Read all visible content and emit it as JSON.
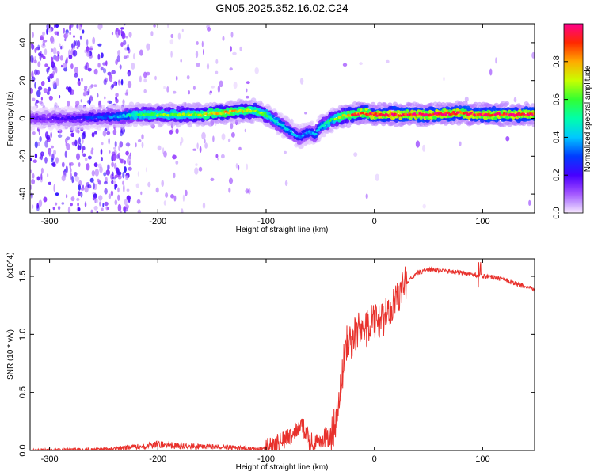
{
  "figure": {
    "title": "GN05.2025.352.16.02.C24"
  },
  "chart_data": [
    {
      "type": "heatmap",
      "xlabel": "Height of straight line (km)",
      "ylabel": "Frequency (Hz)",
      "xlim": [
        -318,
        148
      ],
      "ylim": [
        -50,
        50
      ],
      "xticks": [
        -300,
        -200,
        -100,
        0,
        100
      ],
      "yticks": [
        -40,
        -20,
        0,
        20,
        40
      ],
      "grid": false,
      "colorbar": {
        "label": "Normalized spectral amplitude",
        "range": [
          0,
          1
        ],
        "ticks": [
          0.0,
          0.2,
          0.4,
          0.6,
          0.8
        ],
        "colormap": [
          "#ff00ff",
          "#ff0000",
          "#ffff00",
          "#00ff00",
          "#00ffff",
          "#0000ff",
          "#ff00ff",
          "#ffffff"
        ]
      },
      "ridge": {
        "x": [
          -318,
          -280,
          -240,
          -220,
          -200,
          -180,
          -160,
          -140,
          -120,
          -110,
          -100,
          -90,
          -80,
          -70,
          -60,
          -55,
          -50,
          -45,
          -40,
          -30,
          -20,
          -10,
          0,
          20,
          50,
          80,
          90,
          100,
          120,
          148
        ],
        "freq": [
          0,
          0,
          1,
          2,
          2,
          2,
          2,
          3,
          4,
          4,
          2,
          -2,
          -6,
          -10,
          -7,
          -9,
          -4,
          -3,
          -1,
          1,
          2,
          3,
          2,
          2,
          2,
          3,
          2,
          2,
          2,
          2
        ],
        "amplitude": [
          0.15,
          0.2,
          0.35,
          0.55,
          0.6,
          0.65,
          0.7,
          0.75,
          0.75,
          0.7,
          0.55,
          0.45,
          0.4,
          0.35,
          0.35,
          0.4,
          0.45,
          0.5,
          0.55,
          0.7,
          0.85,
          0.9,
          0.95,
          0.95,
          0.95,
          0.95,
          0.95,
          0.95,
          0.95,
          0.95
        ]
      }
    },
    {
      "type": "line",
      "xlabel": "Height of straight line (km)",
      "ylabel": "SNR (10 * v/v)",
      "y_multiplier": "(x10^4)",
      "xlim": [
        -318,
        148
      ],
      "ylim": [
        0,
        1.65
      ],
      "xticks": [
        -300,
        -200,
        -100,
        0,
        100
      ],
      "yticks": [
        0.0,
        0.5,
        1.0,
        1.5
      ],
      "grid": false,
      "color": "#e8312c",
      "series": [
        {
          "x": [
            -318,
            -250,
            -220,
            -200,
            -180,
            -150,
            -120,
            -110,
            -100,
            -90,
            -80,
            -70,
            -65,
            -60,
            -55,
            -50,
            -45,
            -40,
            -35,
            -30,
            -25,
            -20,
            -15,
            -10,
            -5,
            0,
            5,
            10,
            15,
            20,
            30,
            40,
            50,
            60,
            70,
            80,
            90,
            100,
            110,
            120,
            130,
            140,
            148
          ],
          "values": [
            0.0,
            0.01,
            0.03,
            0.05,
            0.04,
            0.03,
            0.02,
            0.01,
            0.02,
            0.06,
            0.1,
            0.22,
            0.18,
            0.08,
            0.05,
            0.07,
            0.12,
            0.1,
            0.3,
            0.65,
            0.95,
            0.95,
            1.05,
            1.0,
            1.08,
            1.12,
            1.1,
            1.15,
            1.2,
            1.3,
            1.45,
            1.53,
            1.56,
            1.55,
            1.54,
            1.53,
            1.52,
            1.5,
            1.49,
            1.47,
            1.44,
            1.41,
            1.39
          ]
        }
      ]
    }
  ]
}
